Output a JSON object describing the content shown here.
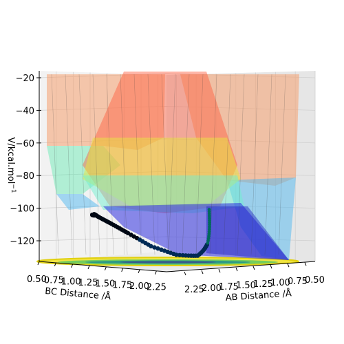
{
  "chart_data": {
    "type": "surface",
    "title": "",
    "zlabel": "V/kcal.mol$^{-1}$",
    "zlabel_text": "V/kcal.mol",
    "zlabel_sup": "−1",
    "xlabel": "BC Distance /Å",
    "ylabel": "AB Distance /Å",
    "z_ticks": [
      "−20",
      "−40",
      "−60",
      "−80",
      "−100",
      "−120"
    ],
    "z_tick_values": [
      -20,
      -40,
      -60,
      -80,
      -100,
      -120
    ],
    "zlim": [
      -135,
      -17
    ],
    "bc_ticks": [
      "0.50",
      "0.75",
      "1.00",
      "1.25",
      "1.50",
      "1.75",
      "2.00",
      "2.25"
    ],
    "ab_ticks": [
      "2.25",
      "2.00",
      "1.75",
      "1.50",
      "1.25",
      "1.00",
      "0.75",
      "0.50"
    ],
    "bc_range": [
      0.5,
      2.3
    ],
    "ab_range": [
      0.5,
      2.3
    ],
    "trajectory_points": [
      {
        "bc": 0.74,
        "ab": 2.3,
        "v": -103.5
      },
      {
        "bc": 0.75,
        "ab": 2.2,
        "v": -103.7
      },
      {
        "bc": 0.74,
        "ab": 2.1,
        "v": -103.6
      },
      {
        "bc": 0.75,
        "ab": 2.0,
        "v": -103.7
      },
      {
        "bc": 0.76,
        "ab": 1.9,
        "v": -103.4
      },
      {
        "bc": 0.75,
        "ab": 1.8,
        "v": -103.0
      },
      {
        "bc": 0.78,
        "ab": 1.6,
        "v": -104.5
      },
      {
        "bc": 0.85,
        "ab": 1.4,
        "v": -107.5
      },
      {
        "bc": 0.95,
        "ab": 1.2,
        "v": -112.0
      },
      {
        "bc": 1.1,
        "ab": 1.05,
        "v": -118.5
      },
      {
        "bc": 1.3,
        "ab": 0.93,
        "v": -122.5
      },
      {
        "bc": 1.55,
        "ab": 0.85,
        "v": -123.0
      },
      {
        "bc": 1.8,
        "ab": 0.8,
        "v": -117.0
      },
      {
        "bc": 2.0,
        "ab": 0.77,
        "v": -108.0
      },
      {
        "bc": 2.15,
        "ab": 0.75,
        "v": -99.5
      }
    ],
    "colormap": "jet",
    "surface_alpha": 0.5,
    "grid": true
  }
}
